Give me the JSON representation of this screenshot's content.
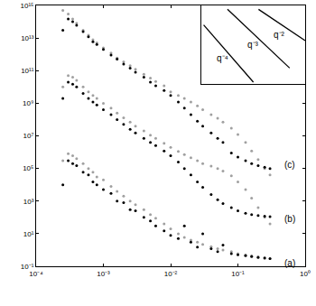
{
  "chart_data": [
    {
      "type": "scatter",
      "log": true,
      "grid": false,
      "marker": "circle",
      "xlim": [
        0.0001,
        1
      ],
      "ylim": [
        0.1,
        1000000000000000.0
      ],
      "xticks": [
        {
          "value": 0.0001,
          "label": "10⁻⁴"
        },
        {
          "value": 0.001,
          "label": "10⁻³"
        },
        {
          "value": 0.01,
          "label": "10⁻²"
        },
        {
          "value": 0.1,
          "label": "10⁻¹"
        },
        {
          "value": 1,
          "label": "10⁰"
        }
      ],
      "yticks": [
        {
          "value": 0.1,
          "label": "10⁻¹"
        },
        {
          "value": 10,
          "label": "10¹"
        },
        {
          "value": 1000,
          "label": "10³"
        },
        {
          "value": 100000,
          "label": "10⁵"
        },
        {
          "value": 10000000,
          "label": "10⁷"
        },
        {
          "value": 1000000000,
          "label": "10⁹"
        },
        {
          "value": 100000000000,
          "label": "10¹¹"
        },
        {
          "value": 10000000000000,
          "label": "10¹³"
        },
        {
          "value": 1000000000000000,
          "label": "10¹⁵"
        }
      ],
      "series": [
        {
          "color": "#a0a0a0",
          "x": [
            0.00025,
            0.0003,
            0.00035,
            0.0004,
            0.0005,
            0.0006,
            0.0007,
            0.0008,
            0.001,
            0.0013,
            0.0016,
            0.002,
            0.0025,
            0.003,
            0.004,
            0.005,
            0.006,
            0.008,
            0.01,
            0.013,
            0.016,
            0.02,
            0.025,
            0.03,
            0.04,
            0.05,
            0.06,
            0.08,
            0.1,
            0.13,
            0.16,
            0.2,
            0.25,
            0.3
          ],
          "values": [
            500000000000000.0,
            300000000000000.0,
            150000000000000.0,
            80000000000000.0,
            30000000000000.0,
            15000000000000.0,
            8000000000000.0,
            5000000000000.0,
            2500000000000.0,
            1200000000000.0,
            600000000000.0,
            350000000000.0,
            200000000000.0,
            120000000000.0,
            60000000000.0,
            35000000000.0,
            22000000000.0,
            12000000000.0,
            5000000000.0,
            3000000000.0,
            2000000000.0,
            1200000000.0,
            700000000.0,
            400000000.0,
            200000000.0,
            120000000.0,
            70000000.0,
            30000000.0,
            12000000.0,
            4000000.0,
            1200000.0,
            350000.0,
            100000.0,
            40000.0
          ]
        },
        {
          "color": "#000000",
          "x": [
            0.00025,
            0.0003,
            0.00035,
            0.0004,
            0.0005,
            0.0006,
            0.0007,
            0.0008,
            0.001,
            0.0013,
            0.0016,
            0.002,
            0.0025,
            0.003,
            0.004,
            0.005,
            0.006,
            0.008,
            0.01,
            0.013,
            0.016,
            0.02,
            0.025,
            0.03,
            0.04,
            0.05,
            0.06,
            0.08,
            0.1,
            0.13,
            0.16,
            0.2,
            0.25,
            0.3
          ],
          "values": [
            30000000000000.0,
            150000000000000.0,
            100000000000000.0,
            60000000000000.0,
            25000000000000.0,
            12000000000000.0,
            6000000000000.0,
            4000000000000.0,
            2000000000000.0,
            900000000000.0,
            500000000000.0,
            250000000000.0,
            140000000000.0,
            80000000000.0,
            40000000000.0,
            20000000000.0,
            12000000000.0,
            6000000000.0,
            3000000000.0,
            1200000000.0,
            500000000.0,
            200000000.0,
            80000000.0,
            40000000.0,
            15000000.0,
            7000000.0,
            4000000.0,
            900000.0,
            500000.0,
            300000.0,
            200000.0,
            150000.0,
            120000.0,
            100000.0
          ]
        },
        {
          "color": "#a0a0a0",
          "x": [
            0.00025,
            0.0003,
            0.00035,
            0.0004,
            0.0005,
            0.0006,
            0.0007,
            0.0008,
            0.001,
            0.0013,
            0.0016,
            0.002,
            0.0025,
            0.003,
            0.004,
            0.005,
            0.006,
            0.008,
            0.01,
            0.013,
            0.016,
            0.02,
            0.025,
            0.03,
            0.04,
            0.05,
            0.06,
            0.08,
            0.1,
            0.13,
            0.16,
            0.2,
            0.25,
            0.3
          ],
          "values": [
            10000000000.0,
            50000000000.0,
            40000000000.0,
            25000000000.0,
            10000000000.0,
            5000000000.0,
            3000000000.0,
            2000000000.0,
            1000000000.0,
            500000000.0,
            250000000.0,
            130000000.0,
            70000000.0,
            40000000.0,
            20000000.0,
            11000000.0,
            7000000.0,
            3500000.0,
            2000000.0,
            1100000.0,
            700000.0,
            450000.0,
            300000.0,
            200000.0,
            140000.0,
            100000.0,
            70000.0,
            35000.0,
            15000.0,
            5000.0,
            1500.0,
            400,
            100,
            40
          ]
        },
        {
          "color": "#000000",
          "x": [
            0.00025,
            0.0003,
            0.00035,
            0.0004,
            0.0005,
            0.0006,
            0.0007,
            0.0008,
            0.001,
            0.0013,
            0.0016,
            0.002,
            0.0025,
            0.003,
            0.004,
            0.005,
            0.006,
            0.008,
            0.01,
            0.013,
            0.016,
            0.02,
            0.025,
            0.03,
            0.04,
            0.05,
            0.06,
            0.08,
            0.1,
            0.13,
            0.16,
            0.2,
            0.25,
            0.3
          ],
          "values": [
            2000000000.0,
            20000000000.0,
            15000000000.0,
            10000000000.0,
            4000000000.0,
            2000000000.0,
            1200000000.0,
            800000000.0,
            400000000.0,
            200000000.0,
            100000000.0,
            50000000.0,
            25000000.0,
            15000000.0,
            7000000.0,
            4000000.0,
            2500000.0,
            1200000.0,
            600000.0,
            250000.0,
            100000.0,
            40000.0,
            15000.0,
            7000.0,
            2500.0,
            1200.0,
            700,
            400,
            250,
            180,
            150,
            130,
            120,
            110
          ]
        },
        {
          "color": "#a0a0a0",
          "x": [
            0.00025,
            0.0003,
            0.00035,
            0.0004,
            0.0005,
            0.0006,
            0.0007,
            0.0008,
            0.001,
            0.0013,
            0.0016,
            0.002,
            0.0025,
            0.003,
            0.004,
            0.005,
            0.006,
            0.008,
            0.01,
            0.013,
            0.016,
            0.02,
            0.025,
            0.03,
            0.04,
            0.05,
            0.06,
            0.08,
            0.1,
            0.13,
            0.16,
            0.2,
            0.25,
            0.3
          ],
          "values": [
            300000.0,
            800000.0,
            600000.0,
            400000.0,
            200000.0,
            100000.0,
            60000.0,
            30000.0,
            20000.0,
            8000.0,
            4000.0,
            2000.0,
            1000.0,
            600,
            300,
            150,
            90,
            40,
            20,
            10,
            6,
            4,
            3,
            2.2,
            1.6,
            1.2,
            1,
            0.8,
            0.6,
            0.5,
            0.45,
            0.4,
            0.35,
            0.3
          ]
        },
        {
          "color": "#000000",
          "x": [
            0.00025,
            0.0003,
            0.00035,
            0.0004,
            0.0005,
            0.0006,
            0.0007,
            0.0008,
            0.001,
            0.0013,
            0.0016,
            0.002,
            0.0025,
            0.003,
            0.004,
            0.005,
            0.006,
            0.008,
            0.01,
            0.013,
            0.016,
            0.02,
            0.025,
            0.03,
            0.04,
            0.05,
            0.06,
            0.08,
            0.1,
            0.13,
            0.16,
            0.2,
            0.25,
            0.3
          ],
          "values": [
            10000.0,
            300000.0,
            200000.0,
            150000.0,
            60000.0,
            40000.0,
            15000.0,
            10000.0,
            5000.0,
            3000.0,
            1000.0,
            800,
            300,
            250,
            100,
            60,
            30,
            15,
            8,
            5,
            30,
            3,
            1.5,
            10,
            1.2,
            0.8,
            2,
            0.6,
            0.5,
            0.45,
            0.4,
            0.35,
            0.32,
            0.3
          ]
        }
      ],
      "annotations": [
        {
          "text": "(c)",
          "x": 0.6,
          "y": 160000
        },
        {
          "text": "(b)",
          "x": 0.6,
          "y": 80
        },
        {
          "text": "(a)",
          "x": 0.6,
          "y": 0.16
        }
      ]
    },
    {
      "type": "line",
      "tick_labels": false,
      "grid": false,
      "line_style": "solid",
      "xlim": [
        0,
        1
      ],
      "ylim": [
        0,
        1
      ],
      "series": [
        {
          "color": "#000000",
          "x": [
            0.02,
            0.5
          ],
          "values": [
            0.75,
            0.02
          ]
        },
        {
          "color": "#000000",
          "x": [
            0.25,
            0.85
          ],
          "values": [
            0.95,
            0.2
          ]
        },
        {
          "color": "#000000",
          "x": [
            0.55,
            1.0
          ],
          "values": [
            0.95,
            0.55
          ]
        }
      ],
      "annotations": [
        {
          "text": "q⁻⁴",
          "x": 0.2,
          "y": 0.33
        },
        {
          "text": "q⁻³",
          "x": 0.5,
          "y": 0.5
        },
        {
          "text": "q⁻²",
          "x": 0.75,
          "y": 0.62
        }
      ]
    }
  ]
}
